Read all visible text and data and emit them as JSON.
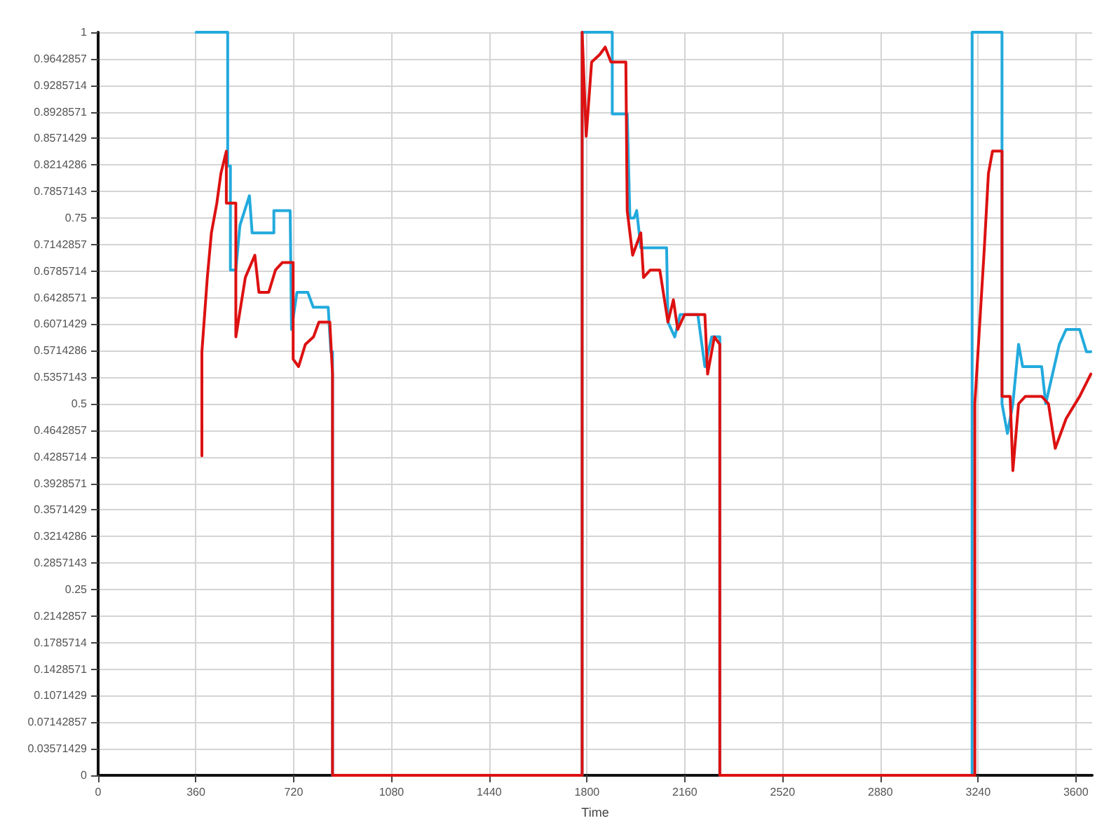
{
  "chart_data": {
    "type": "line",
    "xlabel": "Time",
    "xlim": [
      0,
      3660
    ],
    "xticks": [
      0,
      360,
      720,
      1080,
      1440,
      1800,
      2160,
      2520,
      2880,
      3240,
      3600
    ],
    "ylim": [
      0,
      1
    ],
    "yticks": [
      0,
      {
        "value": 0.0357142857,
        "label": "0.03571429"
      },
      {
        "value": 0.0714285714,
        "label": "0.07142857"
      },
      {
        "value": 0.1071428571,
        "label": "0.1071429"
      },
      {
        "value": 0.1428571429,
        "label": "0.1428571"
      },
      {
        "value": 0.1785714286,
        "label": "0.1785714"
      },
      {
        "value": 0.2142857143,
        "label": "0.2142857"
      },
      0.25,
      {
        "value": 0.2857142857,
        "label": "0.2857143"
      },
      {
        "value": 0.3214285714,
        "label": "0.3214286"
      },
      {
        "value": 0.3571428571,
        "label": "0.3571429"
      },
      {
        "value": 0.3928571429,
        "label": "0.3928571"
      },
      {
        "value": 0.4285714286,
        "label": "0.4285714"
      },
      {
        "value": 0.4642857143,
        "label": "0.4642857"
      },
      0.5,
      {
        "value": 0.5357142857,
        "label": "0.5357143"
      },
      {
        "value": 0.5714285714,
        "label": "0.5714286"
      },
      {
        "value": 0.6071428571,
        "label": "0.6071429"
      },
      {
        "value": 0.6428571429,
        "label": "0.6428571"
      },
      {
        "value": 0.6785714286,
        "label": "0.6785714"
      },
      {
        "value": 0.7142857143,
        "label": "0.7142857"
      },
      0.75,
      {
        "value": 0.7857142857,
        "label": "0.7857143"
      },
      {
        "value": 0.8214285714,
        "label": "0.8214286"
      },
      {
        "value": 0.8571428571,
        "label": "0.8571429"
      },
      {
        "value": 0.8928571429,
        "label": "0.8928571"
      },
      {
        "value": 0.9285714286,
        "label": "0.9285714"
      },
      {
        "value": 0.9642857143,
        "label": "0.9642857"
      },
      1
    ],
    "grid": true,
    "line_style": "solid",
    "series": [
      {
        "color": "#22aadd",
        "x": [
          361,
          477,
          477,
          487,
          487,
          507,
          522,
          557,
          567,
          587,
          647,
          647,
          707,
          712,
          732,
          772,
          792,
          847,
          857,
          863,
          863,
          1782,
          1782,
          1893,
          1893,
          1948,
          1958,
          1973,
          1983,
          1998,
          2018,
          2093,
          2098,
          2123,
          2143,
          2208,
          2234,
          2259,
          2284,
          2289,
          2289,
          3218,
          3218,
          3328,
          3328,
          3348,
          3368,
          3389,
          3404,
          3439,
          3474,
          3489,
          3539,
          3564,
          3614,
          3639,
          3655
        ],
        "values": [
          1,
          1,
          0.82,
          0.82,
          0.68,
          0.68,
          0.74,
          0.78,
          0.73,
          0.73,
          0.73,
          0.76,
          0.76,
          0.6,
          0.65,
          0.65,
          0.63,
          0.63,
          0.57,
          0.57,
          0,
          0,
          1,
          1,
          0.89,
          0.89,
          0.75,
          0.75,
          0.76,
          0.71,
          0.71,
          0.71,
          0.61,
          0.59,
          0.62,
          0.62,
          0.55,
          0.59,
          0.59,
          0.59,
          0,
          0,
          1,
          1,
          0.5,
          0.46,
          0.5,
          0.58,
          0.55,
          0.55,
          0.55,
          0.5,
          0.58,
          0.6,
          0.6,
          0.57,
          0.57
        ]
      },
      {
        "color": "#dd1111",
        "x": [
          382,
          382,
          402,
          417,
          437,
          452,
          472,
          472,
          487,
          507,
          507,
          542,
          577,
          592,
          628,
          653,
          678,
          718,
          718,
          738,
          763,
          793,
          813,
          853,
          863,
          863,
          1782,
          1782,
          1797,
          1817,
          1847,
          1867,
          1888,
          1943,
          1948,
          1968,
          1998,
          2008,
          2033,
          2068,
          2098,
          2118,
          2134,
          2159,
          2234,
          2244,
          2269,
          2289,
          2289,
          3228,
          3228,
          3248,
          3263,
          3278,
          3293,
          3328,
          3328,
          3358,
          3368,
          3389,
          3414,
          3474,
          3499,
          3524,
          3564,
          3614,
          3655
        ],
        "values": [
          0.43,
          0.57,
          0.67,
          0.73,
          0.77,
          0.81,
          0.84,
          0.77,
          0.77,
          0.77,
          0.59,
          0.67,
          0.7,
          0.65,
          0.65,
          0.68,
          0.69,
          0.69,
          0.56,
          0.55,
          0.58,
          0.59,
          0.61,
          0.61,
          0.54,
          0,
          0,
          1,
          0.86,
          0.96,
          0.97,
          0.98,
          0.96,
          0.96,
          0.76,
          0.7,
          0.73,
          0.67,
          0.68,
          0.68,
          0.61,
          0.64,
          0.6,
          0.62,
          0.62,
          0.54,
          0.59,
          0.58,
          0,
          0,
          0.5,
          0.62,
          0.71,
          0.81,
          0.84,
          0.84,
          0.51,
          0.51,
          0.41,
          0.5,
          0.51,
          0.51,
          0.5,
          0.44,
          0.48,
          0.51,
          0.54
        ]
      }
    ]
  }
}
